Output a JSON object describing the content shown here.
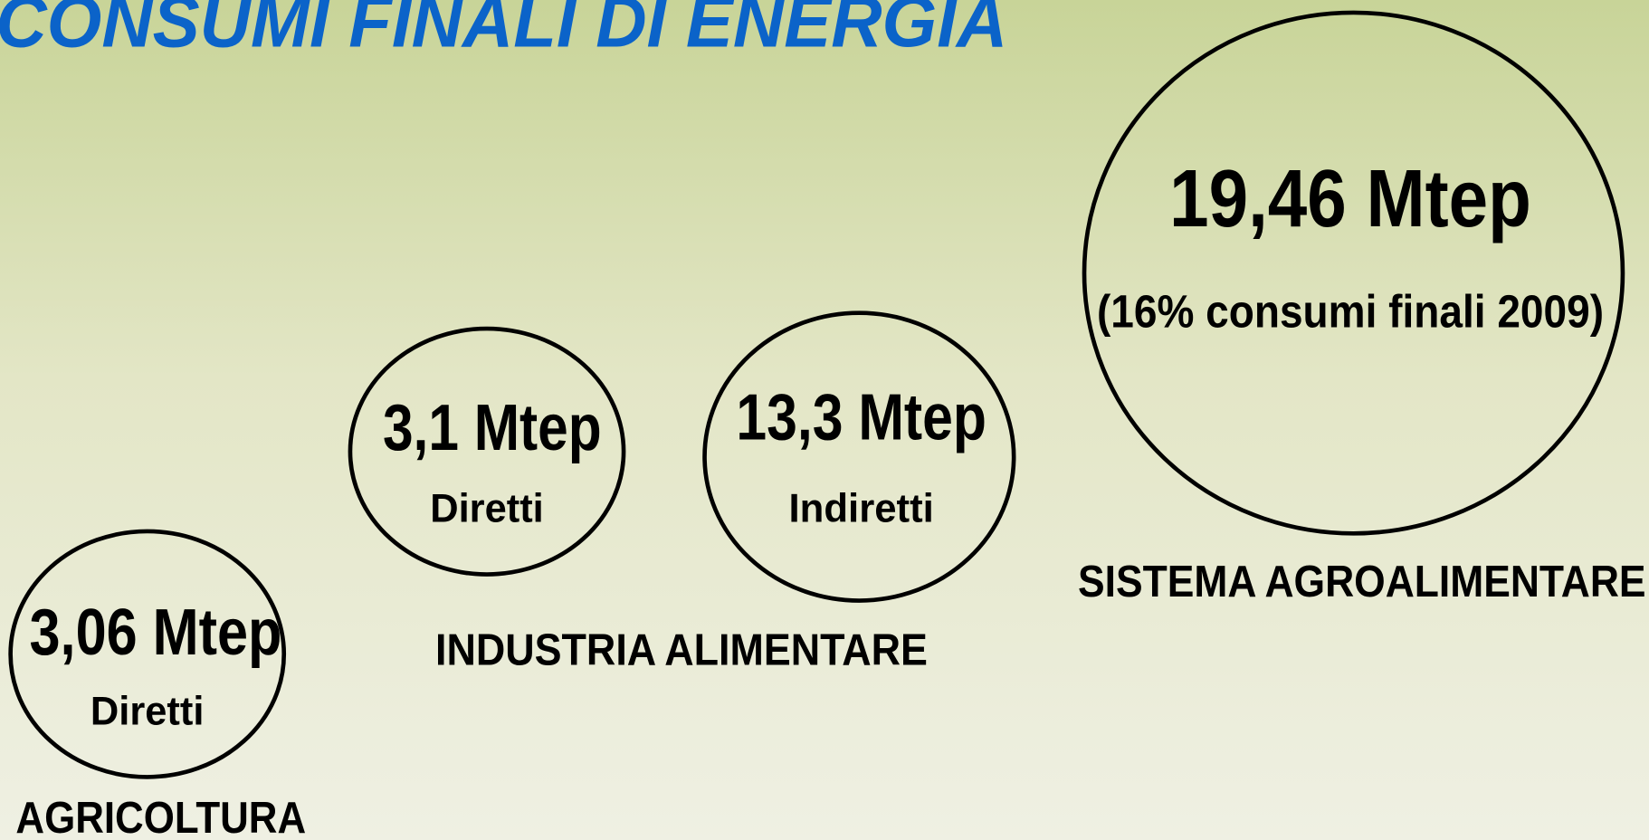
{
  "title": "CONSUMI FINALI DI ENERGIA",
  "circles": [
    {
      "value": "3,06 Mtep",
      "sublabel": "Diretti"
    },
    {
      "value": "3,1 Mtep",
      "sublabel": "Diretti"
    },
    {
      "value": "13,3 Mtep",
      "sublabel": "Indiretti"
    },
    {
      "value": "19,46 Mtep",
      "sublabel": "(16% consumi finali 2009)"
    }
  ],
  "groups": [
    {
      "label": "AGRICOLTURA"
    },
    {
      "label": "INDUSTRIA  ALIMENTARE"
    },
    {
      "label": "SISTEMA  AGROALIMENTARE"
    }
  ]
}
